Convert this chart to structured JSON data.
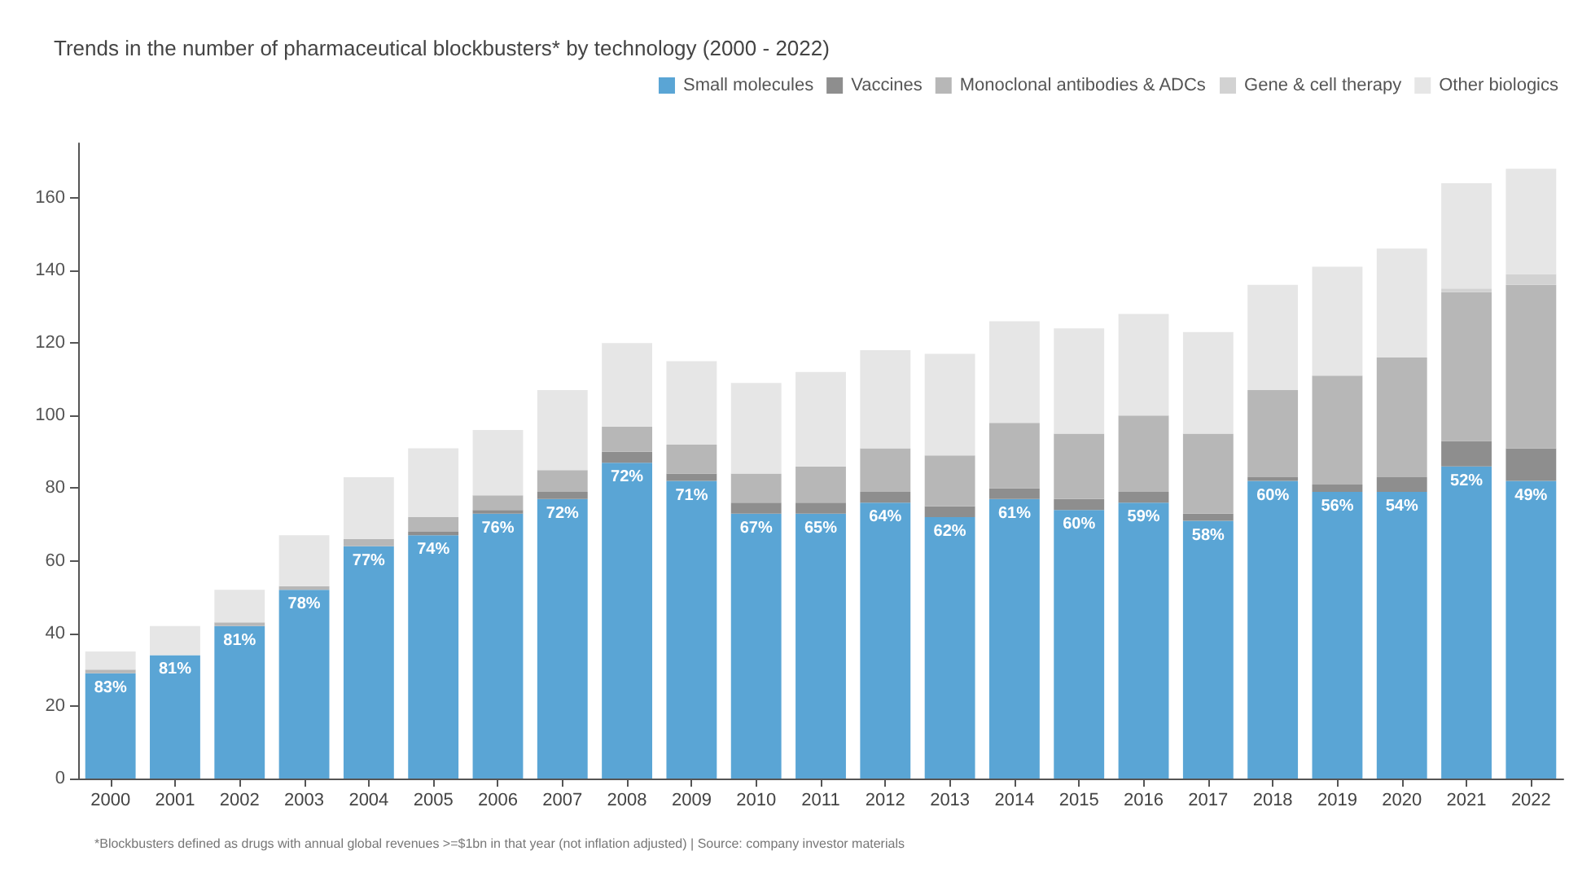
{
  "chart_data": {
    "type": "bar",
    "stacked": true,
    "title": "Trends in the number of pharmaceutical blockbusters* by technology (2000 - 2022)",
    "categories": [
      "2000",
      "2001",
      "2002",
      "2003",
      "2004",
      "2005",
      "2006",
      "2007",
      "2008",
      "2009",
      "2010",
      "2011",
      "2012",
      "2013",
      "2014",
      "2015",
      "2016",
      "2017",
      "2018",
      "2019",
      "2020",
      "2021",
      "2022"
    ],
    "series": [
      {
        "name": "Small molecules",
        "color": "#5aa5d5",
        "values": [
          29,
          34,
          42,
          52,
          64,
          67,
          73,
          77,
          87,
          82,
          73,
          73,
          76,
          72,
          77,
          74,
          76,
          71,
          82,
          79,
          79,
          86,
          82
        ]
      },
      {
        "name": "Vaccines",
        "color": "#8e8e8e",
        "values": [
          0,
          0,
          0,
          0,
          0,
          1,
          1,
          2,
          3,
          2,
          3,
          3,
          3,
          3,
          3,
          3,
          3,
          2,
          1,
          2,
          4,
          7,
          9
        ]
      },
      {
        "name": "Monoclonal antibodies & ADCs",
        "color": "#b7b7b7",
        "values": [
          1,
          0,
          1,
          1,
          2,
          4,
          4,
          6,
          7,
          8,
          8,
          10,
          12,
          14,
          18,
          18,
          21,
          22,
          24,
          30,
          33,
          41,
          45
        ]
      },
      {
        "name": "Gene & cell therapy",
        "color": "#d2d2d2",
        "values": [
          0,
          0,
          0,
          0,
          0,
          0,
          0,
          0,
          0,
          0,
          0,
          0,
          0,
          0,
          0,
          0,
          0,
          0,
          0,
          0,
          0,
          1,
          3
        ]
      },
      {
        "name": "Other biologics",
        "color": "#e6e6e6",
        "values": [
          5,
          8,
          9,
          14,
          17,
          19,
          18,
          22,
          23,
          23,
          25,
          26,
          27,
          28,
          28,
          29,
          28,
          28,
          29,
          30,
          30,
          29,
          29
        ]
      }
    ],
    "ylim": [
      0,
      175
    ],
    "yticks": [
      0,
      20,
      40,
      60,
      80,
      100,
      120,
      140,
      160
    ],
    "grid": false,
    "legend": "top right",
    "annotations": [
      "*Blockbusters defined as drugs with annual global revenues >=$1bn in that year (not inflation adjusted) | Source: company investor materials",
      {
        "text": "83%",
        "x": "2000",
        "y": 29
      },
      {
        "text": "81%",
        "x": "2001",
        "y": 34
      },
      {
        "text": "81%",
        "x": "2002",
        "y": 42
      },
      {
        "text": "78%",
        "x": "2003",
        "y": 52
      },
      {
        "text": "77%",
        "x": "2004",
        "y": 64
      },
      {
        "text": "74%",
        "x": "2005",
        "y": 67
      },
      {
        "text": "76%",
        "x": "2006",
        "y": 73
      },
      {
        "text": "72%",
        "x": "2007",
        "y": 77
      },
      {
        "text": "72%",
        "x": "2008",
        "y": 87
      },
      {
        "text": "71%",
        "x": "2009",
        "y": 82
      },
      {
        "text": "67%",
        "x": "2010",
        "y": 73
      },
      {
        "text": "65%",
        "x": "2011",
        "y": 73
      },
      {
        "text": "64%",
        "x": "2012",
        "y": 76
      },
      {
        "text": "62%",
        "x": "2013",
        "y": 72
      },
      {
        "text": "61%",
        "x": "2014",
        "y": 77
      },
      {
        "text": "60%",
        "x": "2015",
        "y": 74
      },
      {
        "text": "59%",
        "x": "2016",
        "y": 76
      },
      {
        "text": "58%",
        "x": "2017",
        "y": 71
      },
      {
        "text": "60%",
        "x": "2018",
        "y": 82
      },
      {
        "text": "56%",
        "x": "2019",
        "y": 79
      },
      {
        "text": "54%",
        "x": "2020",
        "y": 79
      },
      {
        "text": "52%",
        "x": "2021",
        "y": 86
      },
      {
        "text": "49%",
        "x": "2022",
        "y": 82
      }
    ]
  }
}
